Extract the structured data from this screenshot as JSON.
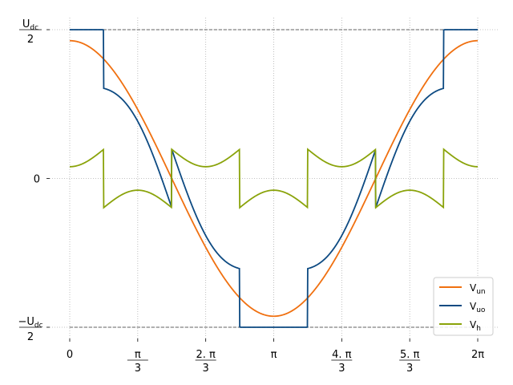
{
  "chart_data": {
    "type": "line",
    "xlim": [
      -0.25,
      6.53
    ],
    "ylim": [
      -1.0,
      1.0
    ],
    "grid": true,
    "legend_position": "lower-right",
    "x_ticks": [
      {
        "value": 0,
        "label": "0"
      },
      {
        "value": 1.0472,
        "num": "π",
        "den": "3"
      },
      {
        "value": 2.0944,
        "num": "2. π",
        "den": "3"
      },
      {
        "value": 3.1416,
        "label": "π"
      },
      {
        "value": 4.1888,
        "num": "4. π",
        "den": "3"
      },
      {
        "value": 5.236,
        "num": "5. π",
        "den": "3"
      },
      {
        "value": 6.2832,
        "label": "2π"
      }
    ],
    "y_ticks": [
      {
        "value": 1.0,
        "num_main": "U",
        "num_sub": "dc",
        "den": "2"
      },
      {
        "value": 0,
        "label": "0"
      },
      {
        "value": -1.0,
        "num_main": "−U",
        "num_sub": "dc",
        "den": "2"
      }
    ],
    "reference_lines": [
      1.0,
      -1.0
    ],
    "series": [
      {
        "key": "Vun",
        "name_main": "V",
        "name_sub": "un",
        "color": "#f07010",
        "amplitude": 0.926
      },
      {
        "key": "Vuo",
        "name_main": "V",
        "name_sub": "uo",
        "color": "#0d4a82",
        "formula": "Vun + Vh"
      },
      {
        "key": "Vh",
        "name_main": "V",
        "name_sub": "h",
        "color": "#8aa30a",
        "peak": 0.196,
        "mid": 0.079
      }
    ]
  }
}
